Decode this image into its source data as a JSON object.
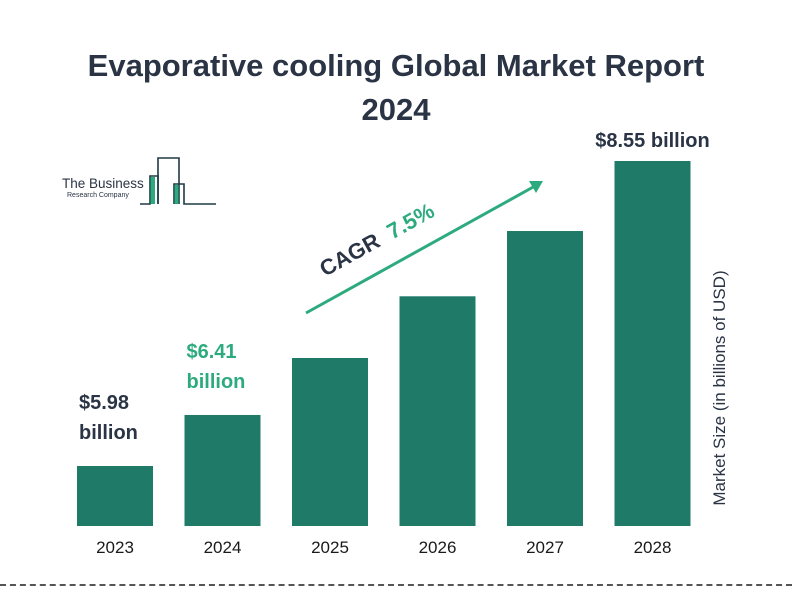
{
  "header": {
    "title_line1": "Evaporative cooling Global Market Report",
    "title_line2": "2024"
  },
  "logo": {
    "line1": "The Business",
    "line2": "Research Company"
  },
  "colors": {
    "bar": "#1f7a68",
    "accent": "#2eaa7f",
    "text_dark": "#2a3445"
  },
  "chart_data": {
    "type": "bar",
    "title": "Evaporative cooling Global Market Report 2024",
    "categories": [
      "2023",
      "2024",
      "2025",
      "2026",
      "2027",
      "2028"
    ],
    "values": [
      5.98,
      6.41,
      6.89,
      7.41,
      7.96,
      8.55
    ],
    "xlabel": "",
    "ylabel": "Market Size (in billions of USD)",
    "ylim": [
      0,
      8.55
    ],
    "grid": false,
    "data_labels": [
      {
        "category": "2023",
        "line1": "$5.98",
        "line2": "billion",
        "color": "dark"
      },
      {
        "category": "2024",
        "line1": "$6.41",
        "line2": "billion",
        "color": "accent"
      },
      {
        "category": "2028",
        "line1": "$8.55 billion",
        "line2": "",
        "color": "dark"
      }
    ],
    "annotation": {
      "label": "CAGR",
      "value": "7.5%"
    }
  }
}
